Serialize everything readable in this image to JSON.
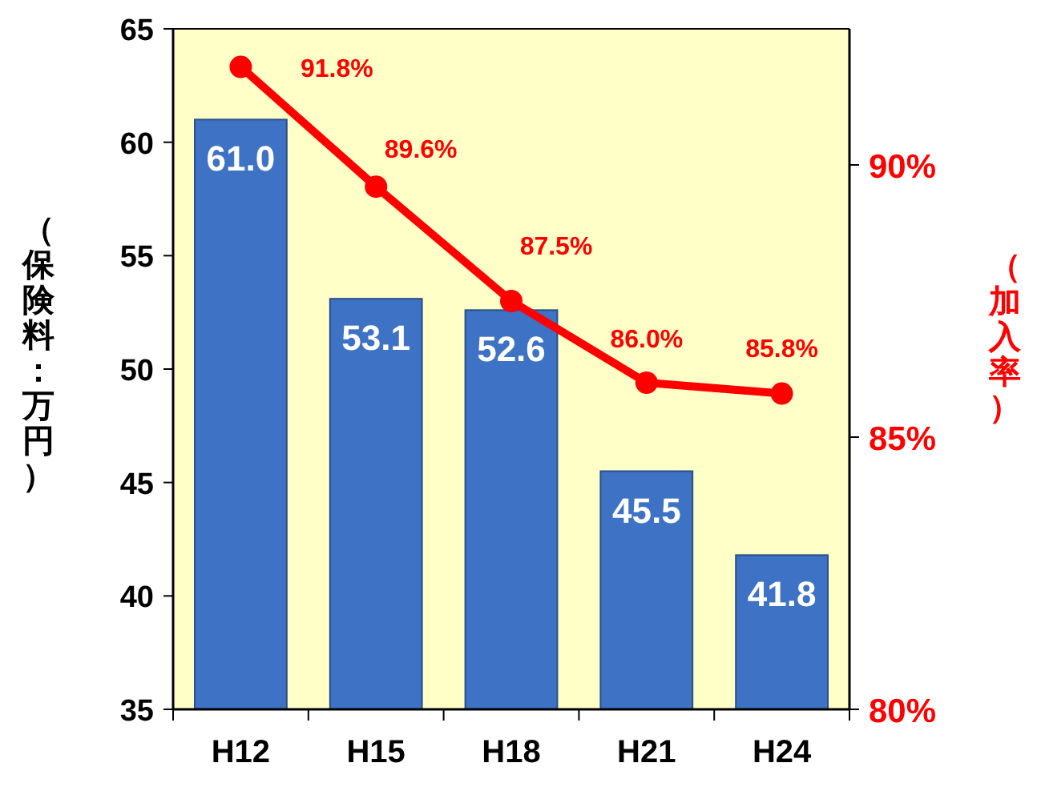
{
  "chart_data": {
    "type": "bar",
    "categories": [
      "H12",
      "H15",
      "H18",
      "H21",
      "H24"
    ],
    "ylabel": "（保険料：万円）",
    "y2label": "（加入率）",
    "ylim": [
      35,
      65
    ],
    "yticks": [
      35,
      40,
      45,
      50,
      55,
      60,
      65
    ],
    "y2lim": [
      80,
      92.5
    ],
    "y2ticks": [
      {
        "value": 80,
        "label": "80%"
      },
      {
        "value": 85,
        "label": "85%"
      },
      {
        "value": 90,
        "label": "90%"
      }
    ],
    "grid": false,
    "series": [
      {
        "color": "#3d72c4",
        "values": [
          61.0,
          53.1,
          52.6,
          45.5,
          41.8
        ],
        "value_labels": [
          "61.0",
          "53.1",
          "52.6",
          "45.5",
          "41.8"
        ]
      },
      {
        "type": "line",
        "axis": "y2",
        "color": "#ff0000",
        "marker": "circle",
        "values": [
          91.8,
          89.6,
          87.5,
          86.0,
          85.8
        ],
        "value_labels": [
          "91.8%",
          "89.6%",
          "87.5%",
          "86.0%",
          "85.8%"
        ]
      }
    ]
  }
}
